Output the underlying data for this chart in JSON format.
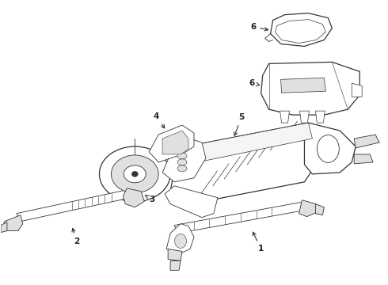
{
  "background_color": "#ffffff",
  "line_color": "#333333",
  "label_color": "#222222",
  "fig_width": 4.9,
  "fig_height": 3.6,
  "dpi": 100,
  "lw_thin": 0.6,
  "lw_med": 0.9,
  "label_fontsize": 7.5
}
